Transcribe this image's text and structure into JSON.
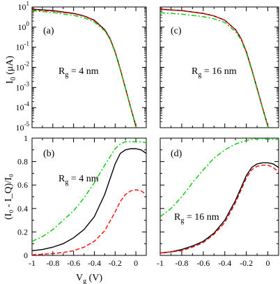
{
  "figure": {
    "ylabel_top_main": "I",
    "ylabel_top_sub": "0",
    "ylabel_top_unit": " (μA)",
    "ylabel_bottom": "(I₀ - I_Q)/I₀",
    "xlabel_main": "V",
    "xlabel_sub": "g",
    "xlabel_unit": " (V)"
  },
  "chart_data": [
    {
      "id": "a",
      "type": "line",
      "panel_label": "(a)",
      "annotation_main": "R",
      "annotation_sub": "g",
      "annotation_rest": " = 4 nm",
      "xlim": [
        -1.0,
        0.1
      ],
      "ylim": [
        1e-05,
        10
      ],
      "yscale": "log",
      "y_tick_exponents": [
        -5,
        -4,
        -3,
        -2,
        -1,
        0,
        1
      ],
      "series": [
        {
          "color": "#000000",
          "dash": "solid",
          "x": [
            -1.0,
            -0.8,
            -0.6,
            -0.5,
            -0.4,
            -0.3,
            -0.25,
            -0.2,
            -0.15,
            -0.1,
            -0.05,
            0.0,
            0.05
          ],
          "y": [
            7.8,
            6.6,
            4.8,
            3.6,
            2.2,
            0.75,
            0.28,
            0.06,
            0.008,
            0.0009,
            0.0001,
            1.2e-05,
            1.2e-06
          ]
        },
        {
          "color": "#ff0000",
          "dash": "dashed",
          "x": [
            -1.0,
            -0.8,
            -0.6,
            -0.5,
            -0.4,
            -0.3,
            -0.25,
            -0.2,
            -0.15,
            -0.1,
            -0.05,
            0.0,
            0.05
          ],
          "y": [
            7.2,
            6.2,
            4.6,
            3.5,
            2.1,
            0.72,
            0.27,
            0.058,
            0.0078,
            0.00088,
            9.8e-05,
            1.1e-05,
            1.1e-06
          ]
        },
        {
          "color": "#00cc00",
          "dash": "dashdot",
          "x": [
            -1.0,
            -0.8,
            -0.6,
            -0.5,
            -0.4,
            -0.3,
            -0.25,
            -0.2,
            -0.15,
            -0.1,
            -0.05,
            0.0,
            0.05
          ],
          "y": [
            6.5,
            5.3,
            3.8,
            2.9,
            1.8,
            0.65,
            0.25,
            0.055,
            0.0075,
            0.00085,
            9.5e-05,
            1.1e-05,
            1.1e-06
          ]
        }
      ]
    },
    {
      "id": "c",
      "type": "line",
      "panel_label": "(c)",
      "annotation_main": "R",
      "annotation_sub": "g",
      "annotation_rest": " = 16 nm",
      "xlim": [
        -1.0,
        0.1
      ],
      "ylim": [
        1e-05,
        10
      ],
      "yscale": "log",
      "y_tick_exponents": [
        -5,
        -4,
        -3,
        -2,
        -1,
        0,
        1
      ],
      "series": [
        {
          "color": "#000000",
          "dash": "solid",
          "x": [
            -1.0,
            -0.8,
            -0.6,
            -0.5,
            -0.4,
            -0.3,
            -0.25,
            -0.2,
            -0.15,
            -0.1,
            -0.05,
            0.0,
            0.05
          ],
          "y": [
            7.8,
            6.6,
            4.8,
            3.6,
            2.2,
            0.75,
            0.28,
            0.06,
            0.008,
            0.0009,
            0.0001,
            1.2e-05,
            1.2e-06
          ]
        },
        {
          "color": "#ff0000",
          "dash": "dashed",
          "x": [
            -1.0,
            -0.8,
            -0.6,
            -0.5,
            -0.4,
            -0.3,
            -0.25,
            -0.2,
            -0.15,
            -0.1,
            -0.05,
            0.0,
            0.05
          ],
          "y": [
            7.6,
            6.5,
            4.7,
            3.6,
            2.2,
            0.74,
            0.28,
            0.06,
            0.008,
            0.0009,
            0.0001,
            1.2e-05,
            1.2e-06
          ]
        },
        {
          "color": "#00cc00",
          "dash": "dashdot",
          "x": [
            -1.0,
            -0.8,
            -0.6,
            -0.5,
            -0.4,
            -0.3,
            -0.25,
            -0.2,
            -0.15,
            -0.1,
            -0.05,
            0.0,
            0.05
          ],
          "y": [
            5.2,
            4.4,
            3.3,
            2.6,
            1.7,
            0.6,
            0.24,
            0.052,
            0.0072,
            0.00082,
            9.3e-05,
            1.1e-05,
            1.1e-06
          ]
        }
      ]
    },
    {
      "id": "b",
      "type": "line",
      "panel_label": "(b)",
      "annotation_main": "R",
      "annotation_sub": "g",
      "annotation_rest": " = 4 nm",
      "xlim": [
        -1.0,
        0.1
      ],
      "ylim": [
        0,
        1
      ],
      "yscale": "linear",
      "x_ticks": [
        -1,
        -0.8,
        -0.6,
        -0.4,
        -0.2,
        0
      ],
      "y_ticks": [
        0,
        0.2,
        0.4,
        0.6,
        0.8,
        1
      ],
      "series": [
        {
          "color": "#000000",
          "dash": "solid",
          "x": [
            -1.0,
            -0.9,
            -0.8,
            -0.7,
            -0.6,
            -0.5,
            -0.4,
            -0.3,
            -0.2,
            -0.15,
            -0.1,
            -0.05,
            0.0,
            0.05,
            0.1
          ],
          "y": [
            0.04,
            0.05,
            0.07,
            0.1,
            0.15,
            0.22,
            0.33,
            0.52,
            0.78,
            0.87,
            0.9,
            0.91,
            0.91,
            0.9,
            0.87
          ]
        },
        {
          "color": "#ff0000",
          "dash": "dashed",
          "x": [
            -1.0,
            -0.9,
            -0.8,
            -0.7,
            -0.6,
            -0.5,
            -0.4,
            -0.3,
            -0.2,
            -0.15,
            -0.1,
            -0.05,
            0.0,
            0.05,
            0.1
          ],
          "y": [
            0.005,
            0.01,
            0.015,
            0.025,
            0.04,
            0.07,
            0.12,
            0.21,
            0.37,
            0.46,
            0.52,
            0.55,
            0.56,
            0.55,
            0.52
          ]
        },
        {
          "color": "#00cc00",
          "dash": "dashdot",
          "x": [
            -1.0,
            -0.9,
            -0.8,
            -0.7,
            -0.6,
            -0.5,
            -0.4,
            -0.3,
            -0.2,
            -0.15,
            -0.1,
            -0.05,
            0.0,
            0.05,
            0.1
          ],
          "y": [
            0.12,
            0.16,
            0.22,
            0.3,
            0.38,
            0.49,
            0.62,
            0.77,
            0.91,
            0.95,
            0.97,
            0.97,
            0.97,
            0.97,
            0.96
          ]
        }
      ]
    },
    {
      "id": "d",
      "type": "line",
      "panel_label": "(d)",
      "annotation_main": "R",
      "annotation_sub": "g",
      "annotation_rest": " = 16 nm",
      "xlim": [
        -1.0,
        0.1
      ],
      "ylim": [
        0,
        1
      ],
      "yscale": "linear",
      "x_ticks": [
        -1,
        -0.8,
        -0.6,
        -0.4,
        -0.2,
        0
      ],
      "y_ticks": [
        0,
        0.2,
        0.4,
        0.6,
        0.8,
        1
      ],
      "series": [
        {
          "color": "#000000",
          "dash": "solid",
          "x": [
            -1.0,
            -0.9,
            -0.8,
            -0.7,
            -0.6,
            -0.5,
            -0.4,
            -0.3,
            -0.2,
            -0.15,
            -0.1,
            -0.05,
            0.0,
            0.05,
            0.1
          ],
          "y": [
            0.02,
            0.03,
            0.05,
            0.08,
            0.12,
            0.19,
            0.3,
            0.47,
            0.68,
            0.75,
            0.78,
            0.79,
            0.79,
            0.78,
            0.75
          ]
        },
        {
          "color": "#ff0000",
          "dash": "dashed",
          "x": [
            -1.0,
            -0.9,
            -0.8,
            -0.7,
            -0.6,
            -0.5,
            -0.4,
            -0.3,
            -0.2,
            -0.15,
            -0.1,
            -0.05,
            0.0,
            0.05,
            0.1
          ],
          "y": [
            0.02,
            0.03,
            0.04,
            0.07,
            0.11,
            0.18,
            0.28,
            0.45,
            0.66,
            0.73,
            0.76,
            0.77,
            0.77,
            0.75,
            0.71
          ]
        },
        {
          "color": "#00cc00",
          "dash": "dashdot",
          "x": [
            -1.0,
            -0.9,
            -0.8,
            -0.7,
            -0.6,
            -0.5,
            -0.4,
            -0.3,
            -0.2,
            -0.15,
            -0.1,
            -0.05,
            0.0,
            0.05,
            0.1
          ],
          "y": [
            0.33,
            0.4,
            0.5,
            0.62,
            0.73,
            0.83,
            0.9,
            0.95,
            0.98,
            0.99,
            0.995,
            0.995,
            0.99,
            0.99,
            0.99
          ]
        }
      ]
    }
  ]
}
